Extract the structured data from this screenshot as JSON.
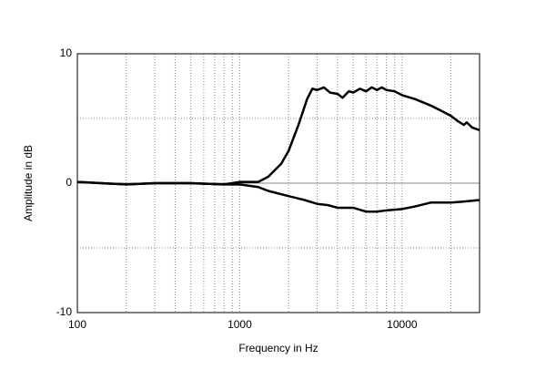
{
  "chart_data": {
    "type": "line",
    "xlabel": "Frequency in Hz",
    "ylabel": "Amplitude in dB",
    "xscale": "log",
    "xlim": [
      100,
      30000
    ],
    "ylim": [
      -10,
      10
    ],
    "xticks": [
      100,
      1000,
      10000
    ],
    "yticks": [
      -10,
      0,
      10
    ],
    "x_minor_grid": [
      200,
      300,
      400,
      500,
      600,
      700,
      800,
      900,
      2000,
      3000,
      4000,
      5000,
      6000,
      7000,
      8000,
      9000,
      20000
    ],
    "y_minor_grid": [
      -5,
      5
    ],
    "grid": true,
    "zero_line": true,
    "series": [
      {
        "color": "#000000",
        "x": [
          100,
          200,
          300,
          500,
          800,
          1000,
          1300,
          1500,
          1800,
          2000,
          2300,
          2600,
          2800,
          3000,
          3300,
          3600,
          4000,
          4300,
          4700,
          5000,
          5500,
          6000,
          6500,
          7000,
          7500,
          8000,
          9000,
          10000,
          12000,
          15000,
          18000,
          20000,
          22000,
          24000,
          25000,
          27000,
          30000
        ],
        "values": [
          0.1,
          -0.1,
          0,
          0,
          -0.1,
          0.1,
          0.1,
          0.5,
          1.5,
          2.5,
          4.5,
          6.5,
          7.3,
          7.2,
          7.4,
          7.0,
          6.9,
          6.6,
          7.1,
          7.0,
          7.3,
          7.1,
          7.4,
          7.2,
          7.4,
          7.2,
          7.1,
          6.8,
          6.5,
          6.0,
          5.5,
          5.2,
          4.8,
          4.5,
          4.7,
          4.3,
          4.1
        ]
      },
      {
        "color": "#000000",
        "x": [
          100,
          200,
          300,
          500,
          800,
          1000,
          1300,
          1500,
          2000,
          2500,
          3000,
          3500,
          4000,
          5000,
          6000,
          7000,
          8000,
          10000,
          12000,
          15000,
          20000,
          25000,
          30000
        ],
        "values": [
          0.1,
          -0.1,
          0,
          0,
          -0.1,
          -0.1,
          -0.3,
          -0.6,
          -1.0,
          -1.3,
          -1.6,
          -1.7,
          -1.9,
          -1.9,
          -2.2,
          -2.2,
          -2.1,
          -2.0,
          -1.8,
          -1.5,
          -1.5,
          -1.4,
          -1.3
        ]
      }
    ]
  }
}
